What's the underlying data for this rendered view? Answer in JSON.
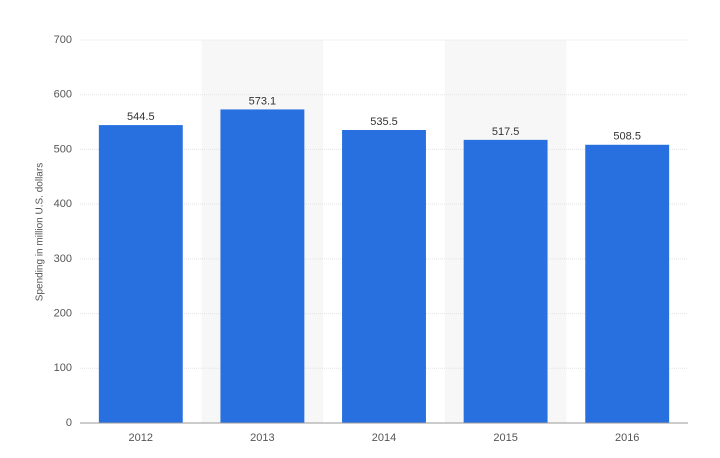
{
  "chart_data": {
    "type": "bar",
    "y_axis_label": "Spending in million U.S. dollars",
    "categories": [
      "2012",
      "2013",
      "2014",
      "2015",
      "2016"
    ],
    "values": [
      544.5,
      573.1,
      535.5,
      517.5,
      508.5
    ],
    "color": "#2870e0",
    "ylim": [
      0,
      700
    ],
    "yticks": [
      0,
      100,
      200,
      300,
      400,
      500,
      600,
      700
    ],
    "grid": true
  }
}
